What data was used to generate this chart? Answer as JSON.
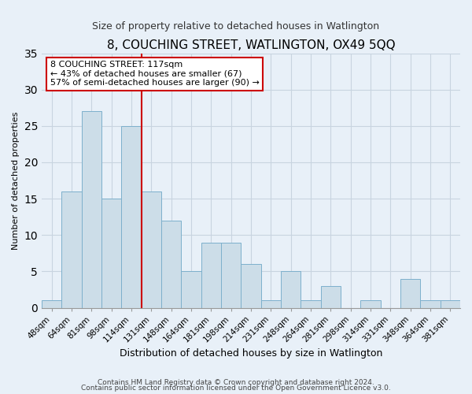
{
  "title": "8, COUCHING STREET, WATLINGTON, OX49 5QQ",
  "subtitle": "Size of property relative to detached houses in Watlington",
  "xlabel": "Distribution of detached houses by size in Watlington",
  "ylabel": "Number of detached properties",
  "footer_line1": "Contains HM Land Registry data © Crown copyright and database right 2024.",
  "footer_line2": "Contains public sector information licensed under the Open Government Licence v3.0.",
  "bar_labels": [
    "48sqm",
    "64sqm",
    "81sqm",
    "98sqm",
    "114sqm",
    "131sqm",
    "148sqm",
    "164sqm",
    "181sqm",
    "198sqm",
    "214sqm",
    "231sqm",
    "248sqm",
    "264sqm",
    "281sqm",
    "298sqm",
    "314sqm",
    "331sqm",
    "348sqm",
    "364sqm",
    "381sqm"
  ],
  "bar_values": [
    1,
    16,
    27,
    15,
    25,
    16,
    12,
    5,
    9,
    9,
    6,
    1,
    5,
    1,
    3,
    0,
    1,
    0,
    4,
    1,
    1
  ],
  "bar_color": "#ccdde8",
  "bar_edge_color": "#7db0cc",
  "vline_x": 4.5,
  "vline_color": "#cc0000",
  "ylim": [
    0,
    35
  ],
  "yticks": [
    0,
    5,
    10,
    15,
    20,
    25,
    30,
    35
  ],
  "annotation_text": "8 COUCHING STREET: 117sqm\n← 43% of detached houses are smaller (67)\n57% of semi-detached houses are larger (90) →",
  "annotation_box_facecolor": "#ffffff",
  "annotation_box_edgecolor": "#cc0000",
  "bg_color": "#e8f0f8",
  "grid_color": "#c8d4e0",
  "title_fontsize": 11,
  "subtitle_fontsize": 9,
  "xlabel_fontsize": 9,
  "ylabel_fontsize": 8,
  "tick_fontsize": 7.5,
  "annot_fontsize": 8,
  "footer_fontsize": 6.5
}
